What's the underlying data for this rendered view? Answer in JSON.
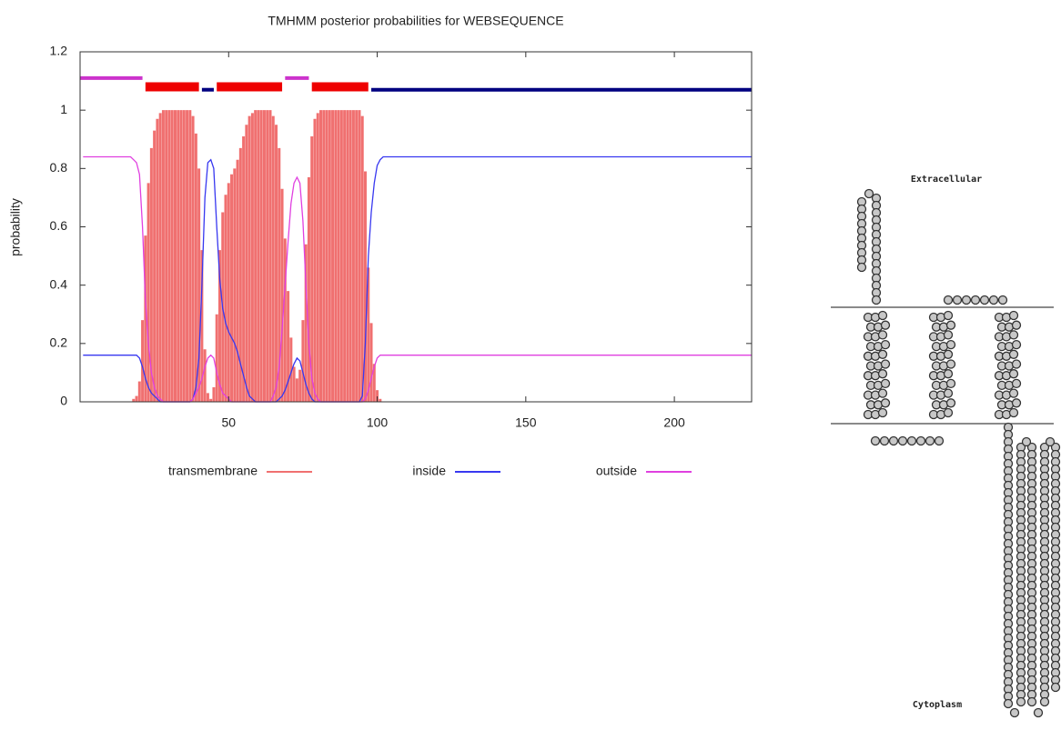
{
  "chart_data": {
    "type": "line",
    "title": "TMHMM posterior probabilities for WEBSEQUENCE",
    "ylabel": "probability",
    "xlim": [
      0,
      226
    ],
    "ylim": [
      0,
      1.2
    ],
    "xticks": [
      50,
      100,
      150,
      200
    ],
    "yticks": [
      0,
      0.2,
      0.4,
      0.6,
      0.8,
      1,
      1.2
    ],
    "x": [
      1,
      5,
      10,
      14,
      17,
      18,
      19,
      20,
      21,
      22,
      23,
      24,
      25,
      26,
      27,
      28,
      29,
      30,
      31,
      32,
      33,
      34,
      35,
      36,
      37,
      38,
      39,
      40,
      41,
      42,
      43,
      44,
      45,
      46,
      47,
      48,
      49,
      50,
      51,
      52,
      53,
      54,
      55,
      56,
      57,
      58,
      59,
      60,
      61,
      62,
      63,
      64,
      65,
      66,
      67,
      68,
      69,
      70,
      71,
      72,
      73,
      74,
      75,
      76,
      77,
      78,
      79,
      80,
      81,
      82,
      83,
      84,
      85,
      86,
      87,
      88,
      89,
      90,
      91,
      92,
      93,
      94,
      95,
      96,
      97,
      98,
      99,
      100,
      101,
      102,
      105,
      110,
      120,
      140,
      160,
      180,
      200,
      226
    ],
    "series": [
      {
        "name": "transmembrane",
        "color": "#f07070",
        "style": "impulses",
        "values": [
          0,
          0,
          0,
          0,
          0,
          0.01,
          0.02,
          0.07,
          0.28,
          0.57,
          0.75,
          0.87,
          0.93,
          0.97,
          0.99,
          1,
          1,
          1,
          1,
          1,
          1,
          1,
          1,
          1,
          1,
          0.98,
          0.92,
          0.8,
          0.52,
          0.18,
          0.03,
          0.01,
          0.05,
          0.3,
          0.52,
          0.65,
          0.71,
          0.75,
          0.78,
          0.8,
          0.83,
          0.87,
          0.91,
          0.95,
          0.98,
          0.99,
          1,
          1,
          1,
          1,
          1,
          1,
          0.98,
          0.95,
          0.87,
          0.73,
          0.56,
          0.38,
          0.22,
          0.12,
          0.08,
          0.11,
          0.28,
          0.54,
          0.77,
          0.91,
          0.97,
          0.99,
          1,
          1,
          1,
          1,
          1,
          1,
          1,
          1,
          1,
          1,
          1,
          1,
          1,
          1,
          0.98,
          0.79,
          0.46,
          0.27,
          0.13,
          0.04,
          0.01,
          0,
          0,
          0,
          0,
          0,
          0,
          0,
          0,
          0
        ]
      },
      {
        "name": "inside",
        "color": "#3838f0",
        "style": "lines",
        "values": [
          0.16,
          0.16,
          0.16,
          0.16,
          0.16,
          0.16,
          0.16,
          0.15,
          0.12,
          0.08,
          0.05,
          0.03,
          0.02,
          0.01,
          0,
          0,
          0,
          0,
          0,
          0,
          0,
          0,
          0,
          0,
          0,
          0.01,
          0.05,
          0.15,
          0.4,
          0.7,
          0.82,
          0.83,
          0.8,
          0.6,
          0.42,
          0.32,
          0.27,
          0.24,
          0.22,
          0.2,
          0.17,
          0.13,
          0.09,
          0.05,
          0.02,
          0.01,
          0,
          0,
          0,
          0,
          0,
          0,
          0,
          0,
          0.01,
          0.02,
          0.04,
          0.07,
          0.1,
          0.13,
          0.15,
          0.14,
          0.1,
          0.06,
          0.03,
          0.01,
          0,
          0,
          0,
          0,
          0,
          0,
          0,
          0,
          0,
          0,
          0,
          0,
          0,
          0,
          0,
          0,
          0.02,
          0.2,
          0.5,
          0.65,
          0.75,
          0.81,
          0.83,
          0.84,
          0.84,
          0.84,
          0.84,
          0.84,
          0.84,
          0.84,
          0.84,
          0.84
        ]
      },
      {
        "name": "outside",
        "color": "#e040e0",
        "style": "lines",
        "values": [
          0.84,
          0.84,
          0.84,
          0.84,
          0.84,
          0.83,
          0.82,
          0.78,
          0.6,
          0.35,
          0.2,
          0.1,
          0.05,
          0.02,
          0.01,
          0,
          0,
          0,
          0,
          0,
          0,
          0,
          0,
          0,
          0,
          0.01,
          0.03,
          0.05,
          0.08,
          0.12,
          0.15,
          0.16,
          0.15,
          0.1,
          0.06,
          0.03,
          0.02,
          0.01,
          0,
          0,
          0,
          0,
          0,
          0,
          0,
          0,
          0,
          0,
          0,
          0,
          0,
          0,
          0.02,
          0.05,
          0.12,
          0.25,
          0.4,
          0.55,
          0.68,
          0.75,
          0.77,
          0.75,
          0.62,
          0.4,
          0.2,
          0.08,
          0.03,
          0.01,
          0,
          0,
          0,
          0,
          0,
          0,
          0,
          0,
          0,
          0,
          0,
          0,
          0,
          0,
          0,
          0.01,
          0.04,
          0.08,
          0.12,
          0.15,
          0.16,
          0.16,
          0.16,
          0.16,
          0.16,
          0.16,
          0.16,
          0.16,
          0.16,
          0.16
        ]
      }
    ],
    "topology": [
      {
        "start": 0,
        "end": 21,
        "y": 1.11,
        "color": "#cc33cc"
      },
      {
        "start": 22,
        "end": 40,
        "y": 1.08,
        "color": "#ee0000"
      },
      {
        "start": 41,
        "end": 45,
        "y": 1.07,
        "color": "#000080"
      },
      {
        "start": 46,
        "end": 68,
        "y": 1.08,
        "color": "#ee0000"
      },
      {
        "start": 69,
        "end": 77,
        "y": 1.11,
        "color": "#cc33cc"
      },
      {
        "start": 78,
        "end": 97,
        "y": 1.08,
        "color": "#ee0000"
      },
      {
        "start": 98,
        "end": 226,
        "y": 1.07,
        "color": "#000080"
      }
    ]
  },
  "diagram": {
    "extracellular_label": "Extracellular",
    "cytoplasm_label": "Cytoplasm"
  }
}
